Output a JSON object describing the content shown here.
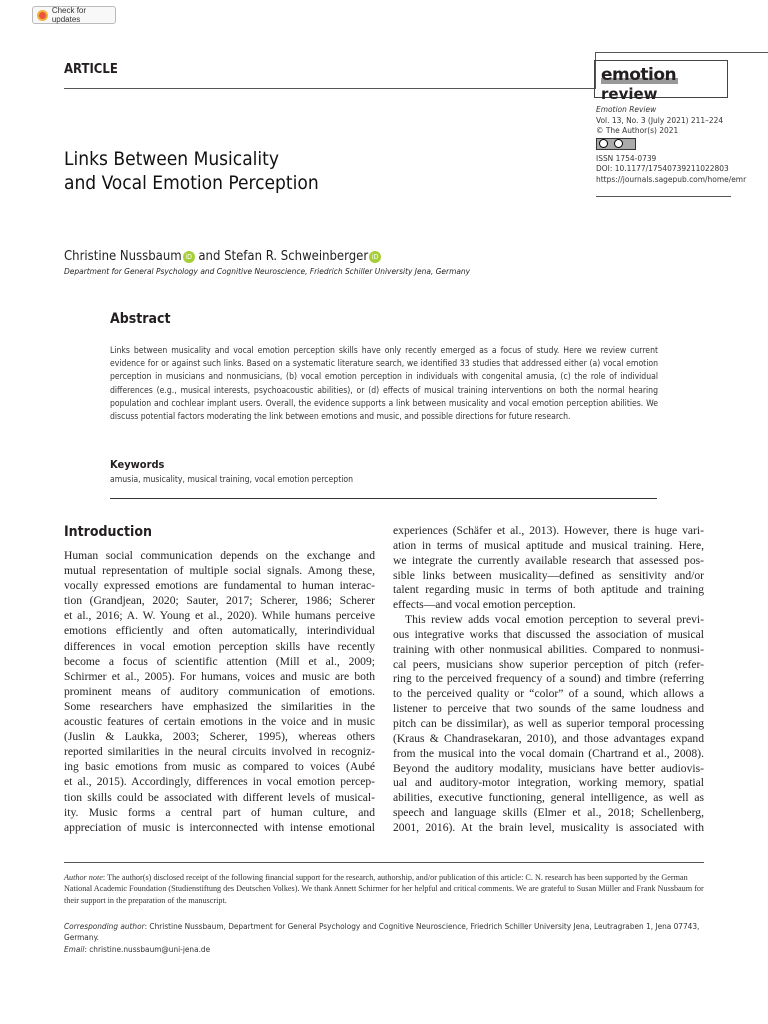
{
  "badge": {
    "label": "Check for updates"
  },
  "header": {
    "section": "ARTICLE",
    "logo": {
      "part1": "emotion",
      "part2": "review"
    }
  },
  "journal": {
    "name": "Emotion Review",
    "volume": "Vol. 13, No. 3 (July 2021) 211–224",
    "copyright": "© The Author(s) 2021",
    "license": "cc",
    "issn": "ISSN 1754-0739",
    "doi": "DOI: 10.1177/17540739211022803",
    "url": "https://journals.sagepub.com/home/emr"
  },
  "title": {
    "line1": "Links Between Musicality",
    "line2": "and Vocal Emotion Perception"
  },
  "authors": {
    "author1": "Christine Nussbaum",
    "and": " and ",
    "author2": "Stefan R. Schweinberger",
    "orcid": "iD",
    "affiliation": "Department for General Psychology and Cognitive Neuroscience, Friedrich Schiller University Jena, Germany"
  },
  "abstract": {
    "heading": "Abstract",
    "text": "Links between musicality and vocal emotion perception skills have only recently emerged as a focus of study. Here we review current evidence for or against such links. Based on a systematic literature search, we identified 33 studies that addressed either (a) vocal emotion perception in musicians and nonmusicians, (b) vocal emotion perception in individuals with congenital amusia, (c) the role of individual differences (e.g., musical interests, psychoacoustic abilities), or (d) effects of musical training interventions on both the normal hearing population and cochlear implant users. Overall, the evidence supports a link between musicality and vocal emotion perception abilities. We discuss potential factors moderating the link between emotions and music, and possible directions for future research."
  },
  "keywords": {
    "heading": "Keywords",
    "text": "amusia, musicality, musical training, vocal emotion perception"
  },
  "body": {
    "heading": "Introduction",
    "left_lines": [
      "Human social communication depends on the exchange and",
      "mutual representation of multiple social signals. Among these,",
      "vocally expressed emotions are fundamental to human interac-",
      "tion (Grandjean, 2020; Sauter, 2017; Scherer, 1986; Scherer",
      "et al., 2016; A. W. Young et al., 2020). While humans perceive",
      "emotions efficiently and often automatically, interindividual",
      "differences in vocal emotion perception skills have recently",
      "become a focus of scientific attention (Mill et al., 2009;",
      "Schirmer et al., 2005). For humans, voices and music are both",
      "prominent means of auditory communication of emotions.",
      "Some researchers have emphasized the similarities in the",
      "acoustic features of certain emotions in the voice and in music",
      "(Juslin & Laukka, 2003; Scherer, 1995), whereas others",
      "reported similarities in the neural circuits involved in recogniz-",
      "ing basic emotions from music as compared to voices (Aubé",
      "et al., 2015). Accordingly, differences in vocal emotion percep-",
      "tion skills could be associated with different levels of musical-",
      "ity. Music forms a central part of human culture, and",
      "appreciation of music is interconnected with intense emotional"
    ],
    "right_lines": [
      "experiences (Schäfer et al., 2013). However, there is huge vari-",
      "ation in terms of musical aptitude and musical training. Here,",
      "we integrate the currently available research that assessed pos-",
      "sible links between musicality—defined as sensitivity and/or",
      "talent regarding music in terms of both aptitude and training",
      "effects—and vocal emotion perception.",
      "This review adds vocal emotion perception to several previ-",
      "ous integrative works that discussed the association of musical",
      "training with other nonmusical abilities. Compared to nonmusi-",
      "cal peers, musicians show superior perception of pitch (refer-",
      "ring to the perceived frequency of a sound) and timbre (referring",
      "to the perceived quality or “color” of a sound, which allows a",
      "listener to perceive that two sounds of the same loudness and",
      "pitch can be dissimilar), as well as superior temporal processing",
      "(Kraus & Chandrasekaran, 2010), and those advantages expand",
      "from the musical into the vocal domain (Chartrand et al., 2008).",
      "Beyond the auditory modality, musicians have better audiovis-",
      "ual and auditory-motor integration, working memory, spatial",
      "abilities, executive functioning, general intelligence, as well as",
      "speech and language skills (Elmer et al., 2018; Schellenberg,",
      "2001, 2016). At the brain level, musicality is associated with"
    ]
  },
  "footnotes": {
    "author_note_label": "Author note",
    "author_note": ": The author(s) disclosed receipt of the following financial support for the research, authorship, and/or publication of this article: C. N. research has been supported by the German National Academic Foundation (Studienstiftung des Deutschen Volkes). We thank Annett Schirmer for her helpful and critical comments. We are grateful to Susan Müller and Frank Nussbaum for their support in the preparation of the manuscript.",
    "corresponding_label": "Corresponding author",
    "corresponding": ": Christine Nussbaum, Department for General Psychology and Cognitive Neuroscience, Friedrich Schiller University Jena, Leutragraben 1, Jena 07743, Germany.",
    "email_label": "Email",
    "email": ": christine.nussbaum@uni-jena.de"
  }
}
